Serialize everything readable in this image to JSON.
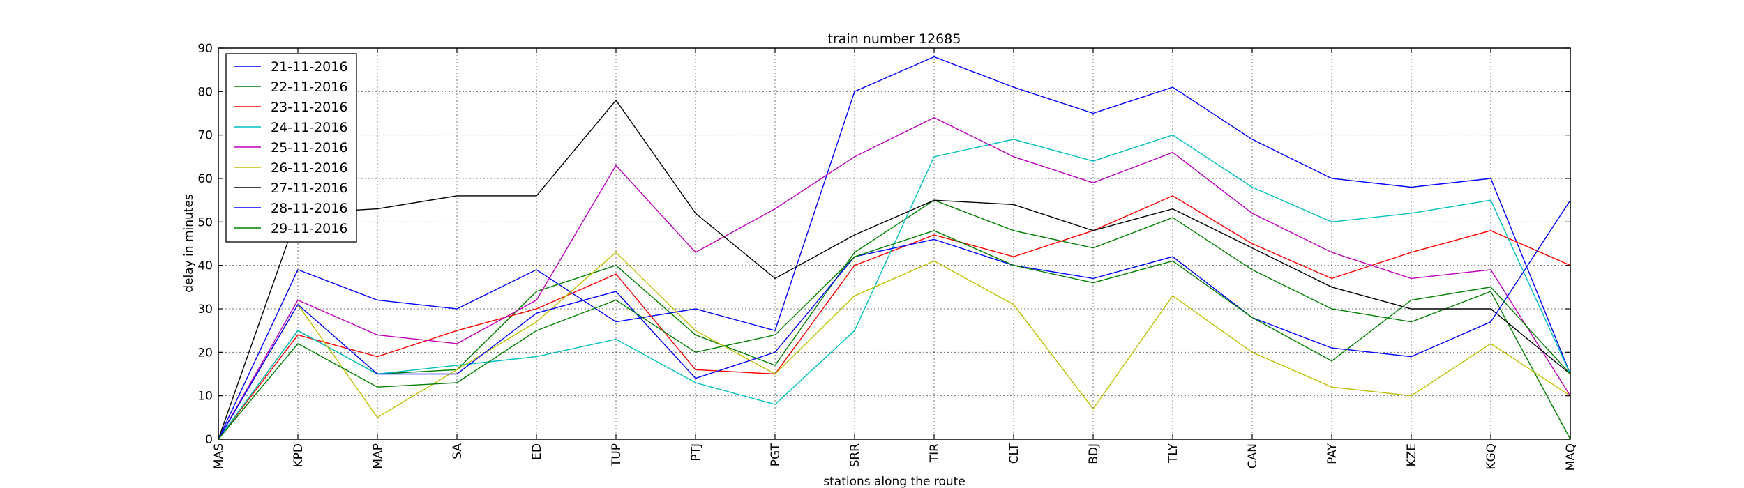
{
  "chart_data": {
    "type": "line",
    "title": "train number 12685",
    "xlabel": "stations along the route",
    "ylabel": "delay in minutes",
    "ylim": [
      0,
      90
    ],
    "yticks": [
      0,
      10,
      20,
      30,
      40,
      50,
      60,
      70,
      80,
      90
    ],
    "grid": true,
    "legend_position": "top-left",
    "categories": [
      "MAS",
      "KPD",
      "MAP",
      "SA",
      "ED",
      "TUP",
      "PTJ",
      "PGT",
      "SRR",
      "TIR",
      "CLT",
      "BDJ",
      "TLY",
      "CAN",
      "PAY",
      "KZE",
      "KGQ",
      "MAQ"
    ],
    "series": [
      {
        "name": "21-11-2016",
        "color": "#0000ff",
        "values": [
          0,
          39,
          32,
          30,
          39,
          27,
          30,
          25,
          80,
          88,
          81,
          75,
          81,
          69,
          60,
          58,
          60,
          15
        ]
      },
      {
        "name": "22-11-2016",
        "color": "#008000",
        "values": [
          0,
          25,
          15,
          16,
          34,
          40,
          24,
          17,
          43,
          55,
          48,
          44,
          51,
          39,
          30,
          27,
          34,
          0
        ]
      },
      {
        "name": "23-11-2016",
        "color": "#ff0000",
        "values": [
          0,
          24,
          19,
          25,
          30,
          38,
          16,
          15,
          40,
          47,
          42,
          48,
          56,
          45,
          37,
          43,
          48,
          40
        ]
      },
      {
        "name": "24-11-2016",
        "color": "#00bfbf",
        "values": [
          0,
          25,
          15,
          17,
          19,
          23,
          13,
          8,
          25,
          65,
          69,
          64,
          70,
          58,
          50,
          52,
          55,
          15
        ]
      },
      {
        "name": "25-11-2016",
        "color": "#bf00bf",
        "values": [
          0,
          32,
          24,
          22,
          32,
          63,
          43,
          53,
          65,
          74,
          65,
          59,
          66,
          52,
          43,
          37,
          39,
          10
        ]
      },
      {
        "name": "26-11-2016",
        "color": "#bfbf00",
        "values": [
          0,
          31,
          5,
          16,
          27,
          43,
          25,
          15,
          33,
          41,
          31,
          7,
          33,
          20,
          12,
          10,
          22,
          10
        ]
      },
      {
        "name": "27-11-2016",
        "color": "#000000",
        "values": [
          0,
          52,
          53,
          56,
          56,
          78,
          52,
          37,
          47,
          55,
          54,
          48,
          53,
          44,
          35,
          30,
          30,
          15
        ]
      },
      {
        "name": "28-11-2016",
        "color": "#0000ff",
        "values": [
          0,
          31,
          15,
          15,
          29,
          34,
          14,
          20,
          42,
          46,
          40,
          37,
          42,
          28,
          21,
          19,
          27,
          55
        ]
      },
      {
        "name": "29-11-2016",
        "color": "#008000",
        "values": [
          0,
          22,
          12,
          13,
          25,
          32,
          20,
          24,
          42,
          48,
          40,
          36,
          41,
          28,
          18,
          32,
          35,
          15
        ]
      }
    ]
  }
}
